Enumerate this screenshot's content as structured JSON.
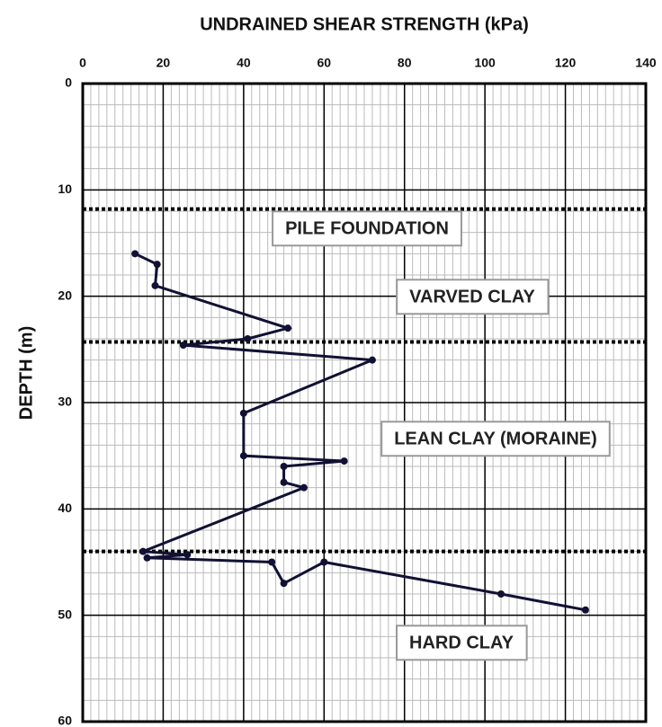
{
  "chart_data": {
    "type": "line",
    "title": "UNDRAINED SHEAR STRENGTH (kPa)",
    "y_label": "DEPTH (m)",
    "x": [
      13,
      18.5,
      18,
      51,
      41,
      25,
      72,
      40,
      40,
      65,
      50,
      50,
      55,
      15,
      26,
      16,
      47,
      50,
      60,
      104,
      125
    ],
    "y": [
      16,
      17,
      19,
      23,
      24,
      24.6,
      26,
      31,
      35,
      35.5,
      36,
      37.5,
      38,
      44,
      44.3,
      44.6,
      45,
      47,
      45,
      48,
      49.5
    ],
    "color": "#111133",
    "xlim": [
      0,
      140
    ],
    "xticks": [
      0,
      20,
      40,
      60,
      80,
      100,
      120,
      140
    ],
    "ylim": [
      0,
      60
    ],
    "yticks": [
      0,
      10,
      20,
      30,
      40,
      50,
      60
    ],
    "y_inverted": true,
    "grid": true,
    "layer_boundaries": [
      11.8,
      24.3,
      44
    ],
    "annotations": [
      "PILE FOUNDATION",
      "VARVED CLAY",
      "LEAN CLAY (MORAINE)",
      "HARD CLAY"
    ]
  }
}
